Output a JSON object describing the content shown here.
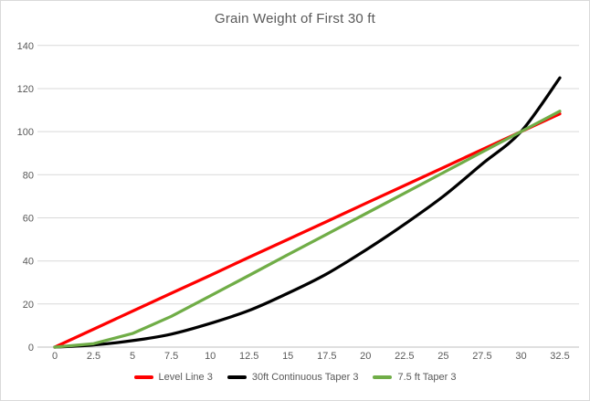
{
  "chart_data": {
    "type": "line",
    "title": "Grain Weight of First 30 ft",
    "xlabel": "",
    "ylabel": "",
    "x": [
      0,
      2.5,
      5,
      7.5,
      10,
      12.5,
      15,
      17.5,
      20,
      22.5,
      25,
      27.5,
      30,
      32.5
    ],
    "x_tick_labels": [
      "0",
      "2.5",
      "5",
      "7.5",
      "10",
      "12.5",
      "15",
      "17.5",
      "20",
      "22.5",
      "25",
      "27.5",
      "30",
      "32.5"
    ],
    "y_ticks": [
      0,
      20,
      40,
      60,
      80,
      100,
      120,
      140
    ],
    "xlim": [
      0,
      32.5
    ],
    "ylim": [
      0,
      140
    ],
    "grid": "horizontal-only",
    "legend_position": "bottom-center",
    "series": [
      {
        "name": "Level Line 3",
        "color": "#ff0000",
        "smooth": false,
        "values": [
          0,
          8.3,
          16.7,
          25,
          33.3,
          41.7,
          50,
          58.3,
          66.7,
          75,
          83.3,
          91.7,
          100,
          108.3
        ]
      },
      {
        "name": "30ft Continuous Taper 3",
        "color": "#000000",
        "smooth": true,
        "values": [
          0,
          1,
          3,
          6,
          11,
          17,
          25,
          34,
          45,
          57,
          70,
          85,
          100,
          125
        ]
      },
      {
        "name": "7.5 ft Taper 3",
        "color": "#70ad47",
        "smooth": false,
        "values": [
          0,
          1.6,
          6.3,
          14.3,
          23.8,
          33.3,
          42.9,
          52.4,
          61.9,
          71.4,
          81,
          90.5,
          100,
          109.5
        ]
      }
    ],
    "colors": {
      "gridline": "#d9d9d9",
      "axis_line": "#bfbfbf",
      "tick_label": "#595959",
      "title": "#595959",
      "background": "#ffffff",
      "border": "#d9d9d9"
    }
  }
}
